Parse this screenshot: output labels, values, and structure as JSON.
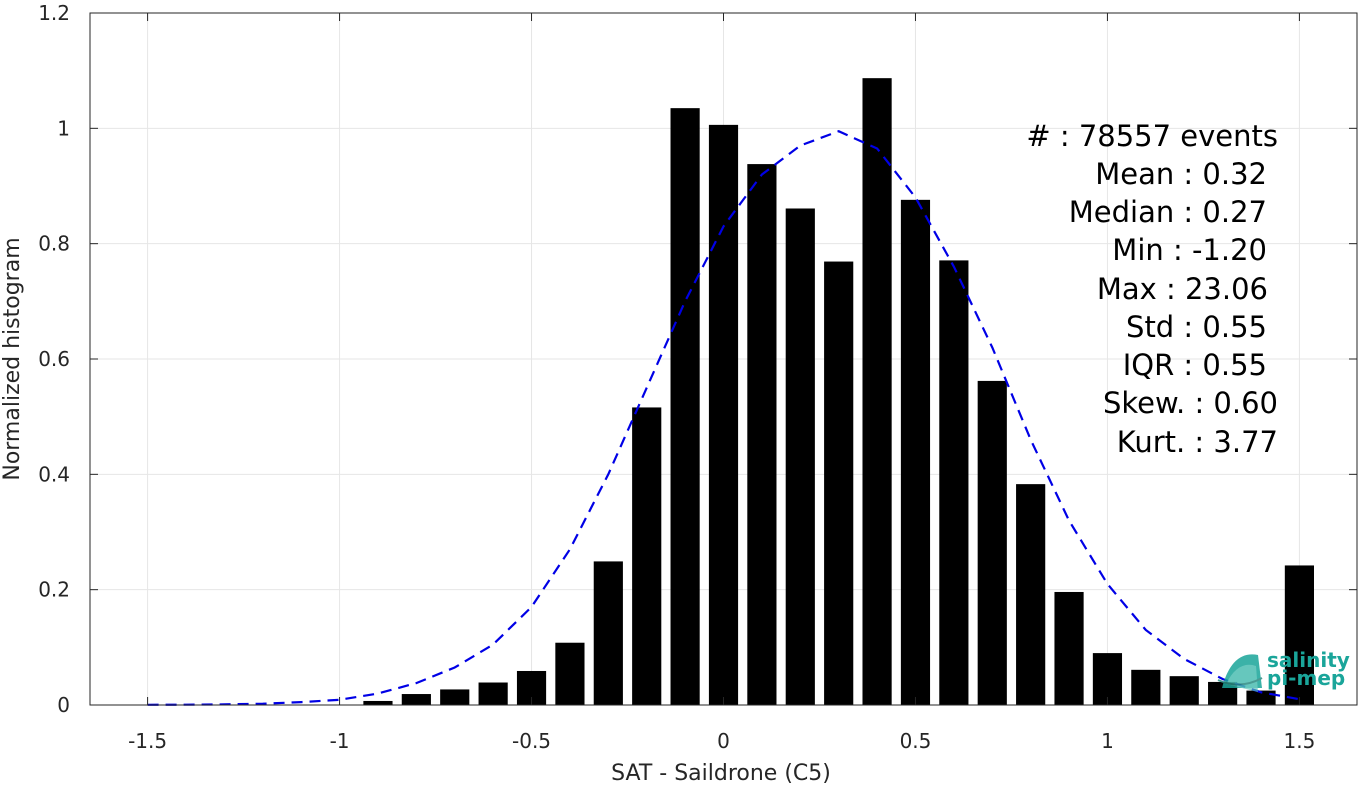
{
  "chart_data": {
    "type": "bar",
    "xlabel": "SAT - Saildrone (C5)",
    "ylabel": "Normalized histogram",
    "xlim": [
      -1.65,
      1.65
    ],
    "ylim": [
      0,
      1.2
    ],
    "xticks": [
      -1.5,
      -1,
      -0.5,
      0,
      0.5,
      1,
      1.5
    ],
    "xtick_labels": [
      "-1.5",
      "-1",
      "-0.5",
      "0",
      "0.5",
      "1",
      "1.5"
    ],
    "yticks": [
      0,
      0.2,
      0.4,
      0.6,
      0.8,
      1,
      1.2
    ],
    "ytick_labels": [
      "0",
      "0.2",
      "0.4",
      "0.6",
      "0.8",
      "1",
      "1.2"
    ],
    "grid": true,
    "bar_color": "#000000",
    "bins": [
      -1.5,
      -1.4,
      -1.3,
      -1.2,
      -1.1,
      -1.0,
      -0.9,
      -0.8,
      -0.7,
      -0.6,
      -0.5,
      -0.4,
      -0.3,
      -0.2,
      -0.1,
      0.0,
      0.1,
      0.2,
      0.3,
      0.4,
      0.5,
      0.6,
      0.7,
      0.8,
      0.9,
      1.0,
      1.1,
      1.2,
      1.3,
      1.4,
      1.5
    ],
    "values": [
      0,
      0,
      0,
      0,
      0,
      0,
      0.007,
      0.019,
      0.027,
      0.039,
      0.059,
      0.108,
      0.249,
      0.516,
      1.035,
      1.006,
      0.938,
      0.861,
      0.769,
      1.087,
      0.876,
      0.771,
      0.562,
      0.383,
      0.196,
      0.09,
      0.061,
      0.05,
      0.04,
      0.025,
      0.242
    ],
    "fit": {
      "name": "Gaussian fit",
      "color": "#0000e6",
      "style": "dashed",
      "x": [
        -1.5,
        -1.4,
        -1.3,
        -1.2,
        -1.1,
        -1.0,
        -0.9,
        -0.8,
        -0.7,
        -0.6,
        -0.5,
        -0.4,
        -0.3,
        -0.2,
        -0.1,
        0.0,
        0.1,
        0.2,
        0.3,
        0.4,
        0.5,
        0.6,
        0.7,
        0.8,
        0.9,
        1.0,
        1.1,
        1.2,
        1.3,
        1.4,
        1.5
      ],
      "y": [
        0.0004,
        0.0006,
        0.001,
        0.0023,
        0.005,
        0.009,
        0.02,
        0.038,
        0.065,
        0.105,
        0.17,
        0.27,
        0.4,
        0.55,
        0.7,
        0.83,
        0.92,
        0.97,
        0.995,
        0.965,
        0.88,
        0.76,
        0.62,
        0.46,
        0.32,
        0.21,
        0.13,
        0.08,
        0.045,
        0.022,
        0.01
      ]
    },
    "stats": [
      "#  : 78557 events",
      "Mean : 0.32",
      "Median : 0.27",
      "Min : -1.20",
      "Max : 23.06",
      "Std : 0.55",
      "IQR : 0.55",
      "Skew. : 0.60",
      "Kurt. : 3.77"
    ]
  },
  "logo": {
    "line1": "salinity",
    "line2": "pi-mep",
    "color": "#1aa59a"
  }
}
